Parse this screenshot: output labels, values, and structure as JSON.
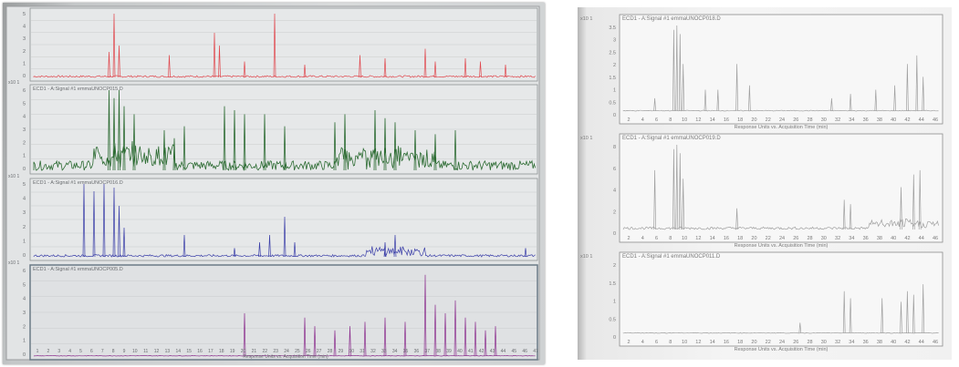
{
  "left": {
    "panels": [
      {
        "title": "",
        "color": "#e0474d",
        "y_ticks": [
          "5",
          "4",
          "3",
          "2",
          "1",
          "0"
        ]
      },
      {
        "prefix": "x10 1",
        "title": "ECD1 - A:Signal #1 emmaUNOCP015.D",
        "color": "#2c6b32",
        "y_ticks": [
          "6",
          "5",
          "4",
          "3",
          "2",
          "1",
          "0"
        ]
      },
      {
        "prefix": "x10 1",
        "title": "ECD1 - A:Signal #1 emmaUNOCP016.D",
        "color": "#3a3ea8",
        "y_ticks": [
          "5",
          "4",
          "3",
          "2",
          "1",
          "0"
        ]
      },
      {
        "prefix": "x10 1",
        "title": "ECD1 - A:Signal #1 emmaUNOCP005.D",
        "color": "#8c2f8e",
        "y_ticks": [
          "6",
          "5",
          "4",
          "3",
          "2",
          "1",
          "0"
        ]
      }
    ],
    "x_ticks": [
      "1",
      "2",
      "3",
      "4",
      "5",
      "6",
      "7",
      "8",
      "9",
      "10",
      "11",
      "12",
      "13",
      "14",
      "15",
      "16",
      "17",
      "18",
      "19",
      "20",
      "21",
      "22",
      "23",
      "24",
      "25",
      "26",
      "27",
      "28",
      "29",
      "30",
      "31",
      "32",
      "33",
      "34",
      "35",
      "36",
      "37",
      "38",
      "39",
      "40",
      "41",
      "42",
      "43",
      "44",
      "45",
      "46",
      "47"
    ],
    "x_label": "Response Units vs. Acquisition Time (min)"
  },
  "right": {
    "panels": [
      {
        "prefix": "x10 1",
        "title": "ECD1 - A:Signal #1 emmaUNOCP018.D",
        "y_ticks": [
          "3.5",
          "3",
          "2.5",
          "2",
          "1.5",
          "1",
          "0.5",
          "0"
        ]
      },
      {
        "prefix": "x10 1",
        "title": "ECD1 - A:Signal #1 emmaUNOCP019.D",
        "y_ticks": [
          "8",
          "6",
          "4",
          "2",
          "0"
        ]
      },
      {
        "prefix": "x10 1",
        "title": "ECD1 - A:Signal #1 emmaUNOCP011.D",
        "y_ticks": [
          "2",
          "1.5",
          "1",
          "0.5",
          "0"
        ]
      }
    ],
    "x_ticks": [
      "2",
      "4",
      "6",
      "8",
      "10",
      "12",
      "14",
      "16",
      "18",
      "20",
      "22",
      "24",
      "26",
      "28",
      "30",
      "32",
      "34",
      "36",
      "38",
      "40",
      "42",
      "44",
      "46"
    ],
    "x_label": "Response Units vs. Acquisition Time (min)"
  }
}
